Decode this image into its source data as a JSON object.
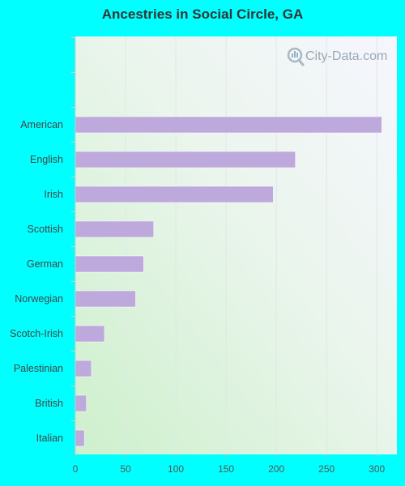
{
  "chart_data": {
    "type": "bar",
    "orientation": "horizontal",
    "title": "Ancestries in Social Circle, GA",
    "categories": [
      "American",
      "English",
      "Irish",
      "Scottish",
      "German",
      "Norwegian",
      "Scotch-Irish",
      "Palestinian",
      "British",
      "Italian"
    ],
    "values": [
      305,
      219,
      197,
      78,
      68,
      60,
      29,
      16,
      11,
      9
    ],
    "xlim": [
      0,
      320
    ],
    "xticks": [
      0,
      50,
      100,
      150,
      200,
      250,
      300
    ],
    "bar_color": "#bda9dc",
    "grid": true,
    "watermark": "City-Data.com"
  }
}
